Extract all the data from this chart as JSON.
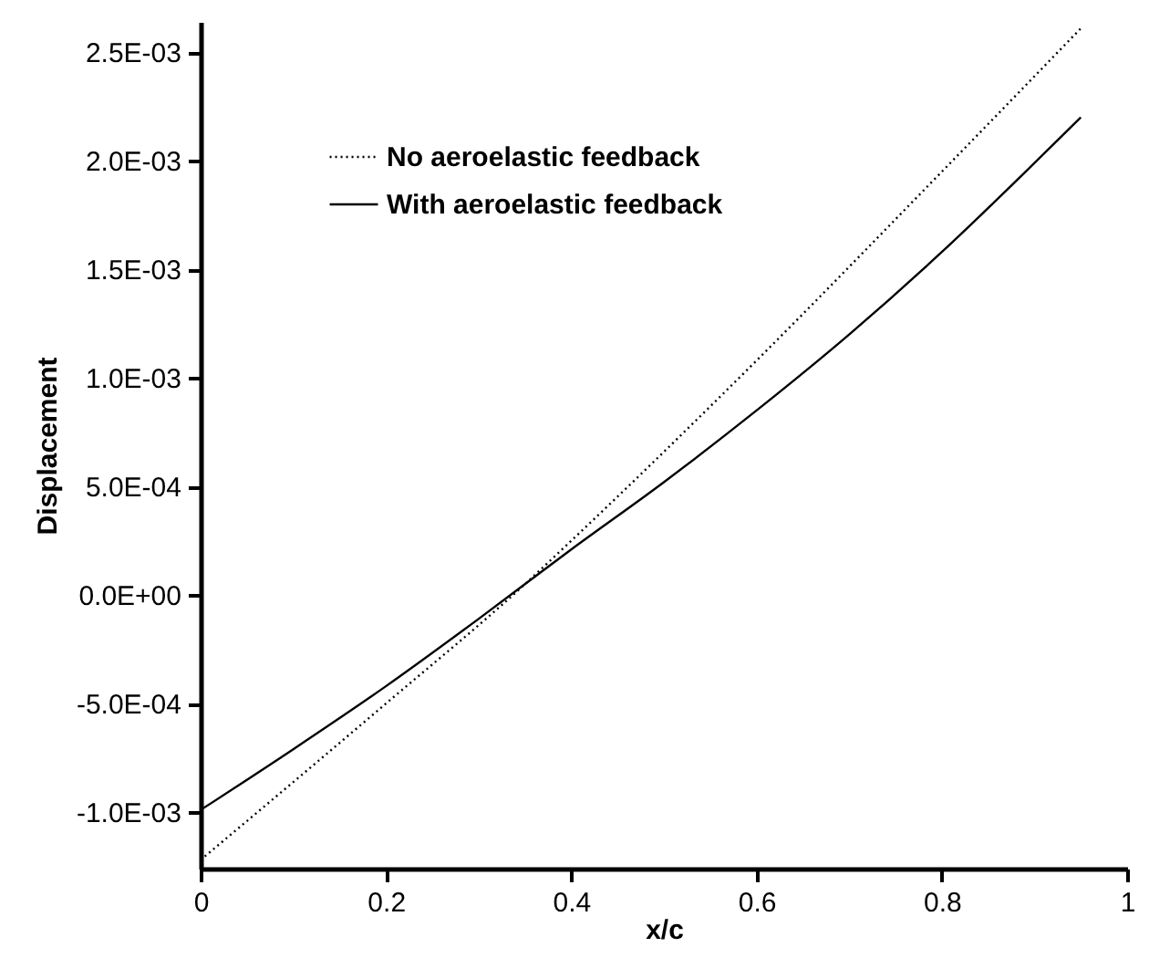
{
  "chart_data": {
    "type": "line",
    "xlabel": "x/c",
    "ylabel": "Displacement",
    "xlim": [
      0,
      1
    ],
    "xticks": [
      0,
      0.2,
      0.4,
      0.6,
      0.8,
      1
    ],
    "ylim": [
      -0.00126,
      0.00264
    ],
    "yticks": [
      {
        "value": -0.001,
        "label": "-1.0E-03"
      },
      {
        "value": -0.0005,
        "label": "-5.0E-04"
      },
      {
        "value": 0,
        "label": "0.0E+00"
      },
      {
        "value": 0.0005,
        "label": "5.0E-04"
      },
      {
        "value": 0.001,
        "label": "1.0E-03"
      },
      {
        "value": 0.0015,
        "label": "1.5E-03"
      },
      {
        "value": 0.002,
        "label": "2.0E-03"
      },
      {
        "value": 0.0025,
        "label": "2.5E-03"
      }
    ],
    "grid": false,
    "legend": "top left",
    "marker": "none",
    "series": [
      {
        "name": "No aeroelastic feedback",
        "color": "#000000",
        "line_style": "dotted",
        "x": [
          0,
          0.2,
          0.35,
          0.4,
          0.6,
          0.8,
          0.95
        ],
        "values": [
          -0.00122,
          -0.0005,
          5e-05,
          0.00025,
          0.00108,
          0.00195,
          0.00261
        ]
      },
      {
        "name": "With aeroelastic feedback",
        "color": "#000000",
        "line_style": "solid",
        "x": [
          0,
          0.1,
          0.2,
          0.3,
          0.4,
          0.5,
          0.6,
          0.7,
          0.8,
          0.9,
          0.95
        ],
        "values": [
          -0.00099,
          -0.00071,
          -0.00042,
          -0.00011,
          0.00021,
          0.00052,
          0.00085,
          0.0012,
          0.00158,
          0.00199,
          0.0022
        ]
      }
    ]
  }
}
